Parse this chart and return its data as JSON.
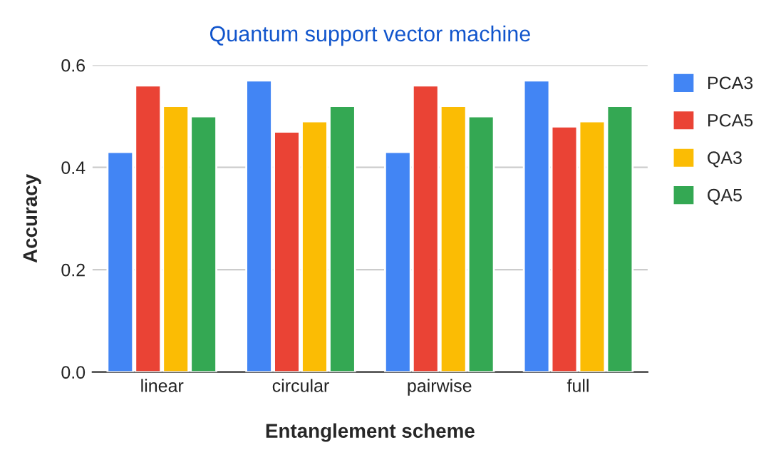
{
  "chart_data": {
    "type": "bar",
    "title": "Quantum support vector machine",
    "xlabel": "Entanglement scheme",
    "ylabel": "Accuracy",
    "categories": [
      "linear",
      "circular",
      "pairwise",
      "full"
    ],
    "series": [
      {
        "name": "PCA3",
        "color": "#4285f4",
        "values": [
          0.43,
          0.57,
          0.43,
          0.57
        ]
      },
      {
        "name": "PCA5",
        "color": "#ea4335",
        "values": [
          0.56,
          0.47,
          0.56,
          0.48
        ]
      },
      {
        "name": "QA3",
        "color": "#fbbc04",
        "values": [
          0.52,
          0.49,
          0.52,
          0.49
        ]
      },
      {
        "name": "QA5",
        "color": "#34a853",
        "values": [
          0.5,
          0.52,
          0.5,
          0.52
        ]
      }
    ],
    "ylim": [
      0,
      0.6
    ],
    "yticks": [
      {
        "value": 0,
        "label": "0.0"
      },
      {
        "value": 0.2,
        "label": "0.2"
      },
      {
        "value": 0.4,
        "label": "0.4"
      },
      {
        "value": 0.6,
        "label": "0.6"
      }
    ],
    "grid": "y",
    "legend": "right"
  }
}
